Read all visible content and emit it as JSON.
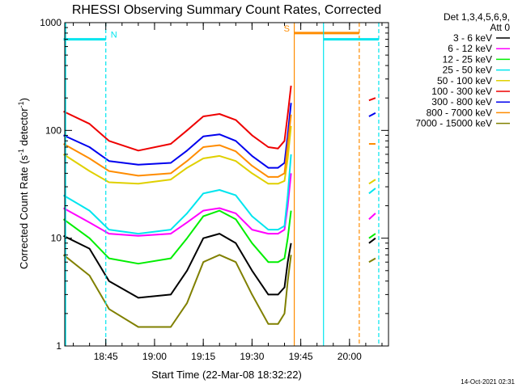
{
  "chart_data": {
    "type": "line",
    "title": "RHESSI Observing Summary Count Rates, Corrected",
    "xlabel": "Start Time (22-Mar-08 18:32:22)",
    "ylabel": "Corrected Count Rate (s⁻¹ detector⁻¹)",
    "ylabel_parts": {
      "main": "Corrected Count Rate (s",
      "exp1": "-1",
      "mid": " detector",
      "exp2": "-1",
      "end": ")"
    },
    "y_scale": "log",
    "ylim": [
      1,
      1000
    ],
    "y_ticks": [
      1,
      10,
      100,
      1000
    ],
    "y_tick_labels": [
      "1",
      "10",
      "100",
      "1000"
    ],
    "xlim": [
      "18:32:22",
      "20:12:00"
    ],
    "x_ticks": [
      "18:45",
      "19:00",
      "19:15",
      "19:30",
      "19:45",
      "20:00"
    ],
    "grid": false,
    "legend_placement": "top-right",
    "legend_header": [
      "Det 1,3,4,5,6,9,",
      "Att 0"
    ],
    "series": [
      {
        "name": "3 - 6 keV",
        "color": "#000000",
        "x": [
          "18:32",
          "18:40",
          "18:46",
          "18:55",
          "19:05",
          "19:10",
          "19:15",
          "19:20",
          "19:25",
          "19:30",
          "19:35",
          "19:38",
          "19:40",
          "19:41",
          "19:42",
          "20:06",
          "20:08"
        ],
        "values": [
          10.5,
          8,
          4,
          2.8,
          3,
          5,
          10,
          11,
          9,
          5,
          3,
          3,
          3.5,
          6,
          9,
          9,
          10
        ]
      },
      {
        "name": "6 - 12 keV",
        "color": "#ff00ff",
        "x": [
          "18:32",
          "18:40",
          "18:46",
          "18:55",
          "19:05",
          "19:10",
          "19:15",
          "19:20",
          "19:25",
          "19:30",
          "19:35",
          "19:38",
          "19:40",
          "19:41",
          "19:42",
          "20:06",
          "20:08"
        ],
        "values": [
          19,
          14,
          11,
          10.5,
          11,
          14,
          18,
          19,
          17,
          12,
          11,
          11,
          12,
          20,
          40,
          15,
          17
        ]
      },
      {
        "name": "12 - 25 keV",
        "color": "#00ee00",
        "x": [
          "18:32",
          "18:40",
          "18:46",
          "18:55",
          "19:05",
          "19:10",
          "19:15",
          "19:20",
          "19:25",
          "19:30",
          "19:35",
          "19:38",
          "19:40",
          "19:41",
          "19:42",
          "20:06",
          "20:08"
        ],
        "values": [
          15,
          10,
          6.5,
          5.8,
          6.5,
          10,
          16,
          18,
          15,
          9,
          6,
          6,
          6.5,
          10,
          18,
          10,
          11
        ]
      },
      {
        "name": "25 - 50 keV",
        "color": "#00e5ee",
        "x": [
          "18:32",
          "18:40",
          "18:46",
          "18:55",
          "19:05",
          "19:10",
          "19:15",
          "19:20",
          "19:25",
          "19:30",
          "19:35",
          "19:38",
          "19:40",
          "19:41",
          "19:42",
          "20:06",
          "20:08"
        ],
        "values": [
          25,
          18,
          12,
          11,
          12,
          17,
          26,
          28,
          25,
          16,
          12,
          12,
          13,
          25,
          60,
          26,
          29
        ]
      },
      {
        "name": "50 - 100 keV",
        "color": "#e0d000",
        "x": [
          "18:32",
          "18:40",
          "18:46",
          "18:55",
          "19:05",
          "19:10",
          "19:15",
          "19:20",
          "19:25",
          "19:30",
          "19:35",
          "19:38",
          "19:40",
          "19:41",
          "19:42",
          "20:06",
          "20:08"
        ],
        "values": [
          60,
          42,
          33,
          32,
          35,
          45,
          55,
          58,
          52,
          40,
          32,
          32,
          34,
          55,
          110,
          32,
          35
        ]
      },
      {
        "name": "100 - 300 keV",
        "color": "#ee0000",
        "x": [
          "18:32",
          "18:40",
          "18:46",
          "18:55",
          "19:05",
          "19:10",
          "19:15",
          "19:20",
          "19:25",
          "19:30",
          "19:35",
          "19:38",
          "19:40",
          "19:41",
          "19:42",
          "20:06",
          "20:08"
        ],
        "values": [
          150,
          115,
          80,
          65,
          75,
          100,
          135,
          142,
          125,
          90,
          70,
          68,
          80,
          140,
          260,
          190,
          200
        ]
      },
      {
        "name": "300 - 800 keV",
        "color": "#0000ee",
        "x": [
          "18:32",
          "18:40",
          "18:46",
          "18:55",
          "19:05",
          "19:10",
          "19:15",
          "19:20",
          "19:25",
          "19:30",
          "19:35",
          "19:38",
          "19:40",
          "19:41",
          "19:42",
          "20:06",
          "20:08"
        ],
        "values": [
          90,
          70,
          52,
          48,
          50,
          65,
          88,
          92,
          80,
          58,
          45,
          45,
          50,
          90,
          180,
          135,
          145
        ]
      },
      {
        "name": "800 - 7000 keV",
        "color": "#ff8c00",
        "x": [
          "18:32",
          "18:40",
          "18:46",
          "18:55",
          "19:05",
          "19:10",
          "19:15",
          "19:20",
          "19:25",
          "19:30",
          "19:35",
          "19:38",
          "19:40",
          "19:41",
          "19:42",
          "20:06",
          "20:08"
        ],
        "values": [
          75,
          55,
          42,
          38,
          40,
          52,
          70,
          73,
          64,
          47,
          37,
          37,
          40,
          75,
          140,
          75,
          75
        ]
      },
      {
        "name": "7000 - 15000 keV",
        "color": "#808000",
        "x": [
          "18:32",
          "18:40",
          "18:46",
          "18:55",
          "19:05",
          "19:10",
          "19:15",
          "19:20",
          "19:25",
          "19:30",
          "19:35",
          "19:38",
          "19:40",
          "19:41",
          "19:42",
          "20:06",
          "20:08"
        ],
        "values": [
          7,
          4.5,
          2.2,
          1.5,
          1.5,
          2.5,
          6,
          7,
          6,
          3,
          1.6,
          1.6,
          2,
          4,
          7,
          6,
          6.5
        ]
      }
    ],
    "gap_x": [
      "19:43",
      "20:06"
    ],
    "annotations": [
      {
        "label": "N",
        "color": "#00e5ee",
        "x_start": "18:32",
        "x_end": "18:45",
        "y": 700,
        "line_x": "18:45",
        "line_style": "dashed"
      },
      {
        "label": "S",
        "color": "#ff8c00",
        "x_start": "19:43",
        "x_end": "20:03",
        "y": 800,
        "line_x": "19:43",
        "line_style": "solid",
        "end_line_x": "20:03",
        "end_line_style": "dashed"
      },
      {
        "label": "",
        "color": "#00e5ee",
        "x_start": "19:52",
        "x_end": "20:09",
        "y": 700,
        "line_x": "19:52",
        "line_style": "solid",
        "end_line_x": "20:09",
        "end_line_style": "dashed"
      }
    ],
    "footer_timestamp": "14-Oct-2021 02:31"
  }
}
